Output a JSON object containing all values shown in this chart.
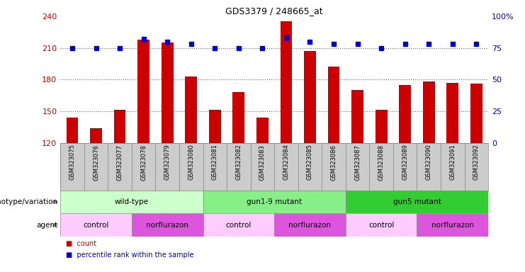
{
  "title": "GDS3379 / 248665_at",
  "samples": [
    "GSM323075",
    "GSM323076",
    "GSM323077",
    "GSM323078",
    "GSM323079",
    "GSM323080",
    "GSM323081",
    "GSM323082",
    "GSM323083",
    "GSM323084",
    "GSM323085",
    "GSM323086",
    "GSM323087",
    "GSM323088",
    "GSM323089",
    "GSM323090",
    "GSM323091",
    "GSM323092"
  ],
  "counts": [
    144,
    134,
    151,
    218,
    215,
    183,
    151,
    168,
    144,
    235,
    207,
    192,
    170,
    151,
    175,
    178,
    177,
    176
  ],
  "percentile_ranks": [
    75,
    75,
    75,
    82,
    80,
    78,
    75,
    75,
    75,
    83,
    80,
    78,
    78,
    75,
    78,
    78,
    78,
    78
  ],
  "ymin": 120,
  "ymax": 240,
  "yticks_left": [
    120,
    150,
    180,
    210,
    240
  ],
  "yticks_right": [
    0,
    25,
    50,
    75,
    100
  ],
  "bar_color": "#cc0000",
  "dot_color": "#0000cc",
  "bar_width": 0.5,
  "genotype_groups": [
    {
      "label": "wild-type",
      "start": 0,
      "end": 5,
      "color": "#ccffcc"
    },
    {
      "label": "gun1-9 mutant",
      "start": 6,
      "end": 11,
      "color": "#88ee88"
    },
    {
      "label": "gun5 mutant",
      "start": 12,
      "end": 17,
      "color": "#33cc33"
    }
  ],
  "agent_groups": [
    {
      "label": "control",
      "start": 0,
      "end": 2,
      "color": "#ffccff"
    },
    {
      "label": "norflurazon",
      "start": 3,
      "end": 5,
      "color": "#dd55dd"
    },
    {
      "label": "control",
      "start": 6,
      "end": 8,
      "color": "#ffccff"
    },
    {
      "label": "norflurazon",
      "start": 9,
      "end": 11,
      "color": "#dd55dd"
    },
    {
      "label": "control",
      "start": 12,
      "end": 14,
      "color": "#ffccff"
    },
    {
      "label": "norflurazon",
      "start": 15,
      "end": 17,
      "color": "#dd55dd"
    }
  ],
  "dotted_lines": [
    150,
    180,
    210
  ],
  "axis_color_left": "#cc0000",
  "axis_color_right": "#0000cc",
  "tick_bg_color": "#cccccc",
  "genotype_row_label": "genotype/variation",
  "agent_row_label": "agent",
  "legend_count_color": "#cc0000",
  "legend_dot_color": "#0000cc",
  "legend_count_text": "count",
  "legend_percentile_text": "percentile rank within the sample"
}
